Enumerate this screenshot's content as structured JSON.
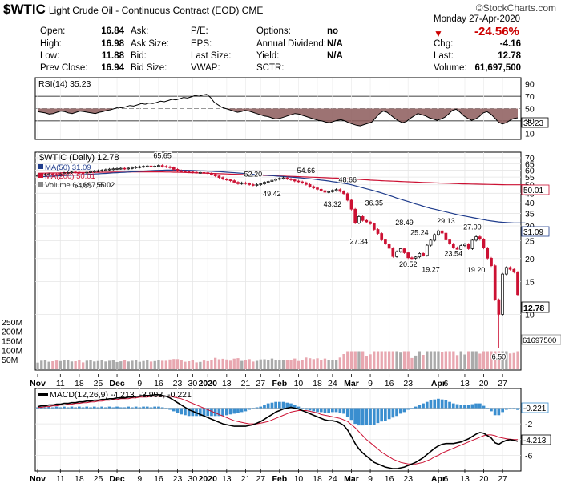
{
  "header": {
    "symbol": "$WTIC",
    "name": "Light Crude Oil - Continuous Contract (EOD) CME",
    "logo": "©StockCharts.com",
    "date": "Monday  27-Apr-2020",
    "change_pct": "-24.56%"
  },
  "quote": {
    "open_label": "Open:",
    "open": "16.84",
    "high_label": "High:",
    "high": "16.98",
    "low_label": "Low:",
    "low": "11.88",
    "prev_label": "Prev Close:",
    "prev": "16.94",
    "ask_label": "Ask:",
    "ask": "",
    "asksize_label": "Ask Size:",
    "asksize": "",
    "bid_label": "Bid:",
    "bid": "",
    "bidsize_label": "Bid Size:",
    "bidsize": "",
    "pe_label": "P/E:",
    "eps_label": "EPS:",
    "lastsize_label": "Last Size:",
    "vwap_label": "VWAP:",
    "options_label": "Options:",
    "options": "no",
    "div_label": "Annual Dividend:",
    "div": "N/A",
    "yield_label": "Yield:",
    "yield": "N/A",
    "sctr_label": "SCTR:",
    "chg_label": "Chg:",
    "chg": "-4.16",
    "last_label": "Last:",
    "last": "12.78",
    "volume_label": "Volume:",
    "volume": "61,697,500"
  },
  "colors": {
    "up": "#000000",
    "down": "#cc1133",
    "ma50": "#1f3c8c",
    "ma200": "#cc1133",
    "vol_up": "#aaaaaa",
    "vol_down": "#e8a7b0",
    "hist": "#3a8ecf",
    "rsi_fill": "#8c5a5a"
  },
  "chart_data": [
    {
      "type": "line",
      "panel": "rsi",
      "title": "RSI(14) 35.23",
      "current_label": "35.23",
      "ylim": [
        0,
        100
      ],
      "y_ticks": [
        "90",
        "70",
        "50",
        "30",
        "10"
      ],
      "levels": [
        70,
        30
      ],
      "values": [
        45,
        44,
        43,
        41,
        42,
        44,
        46,
        45,
        43,
        42,
        44,
        46,
        45,
        44,
        43,
        42,
        44,
        45,
        47,
        48,
        50,
        52,
        51,
        53,
        55,
        54,
        56,
        58,
        57,
        59,
        58,
        60,
        62,
        61,
        63,
        65,
        64,
        66,
        68,
        67,
        69,
        71,
        70,
        72,
        73,
        68,
        60,
        56,
        52,
        50,
        48,
        46,
        44,
        45,
        47,
        46,
        44,
        42,
        40,
        38,
        37,
        35,
        33,
        34,
        36,
        38,
        40,
        42,
        41,
        39,
        37,
        35,
        33,
        31,
        30,
        28,
        27,
        29,
        31,
        32,
        30,
        27,
        25,
        23,
        22,
        24,
        26,
        28,
        35,
        42,
        46,
        44,
        39,
        34,
        30,
        27,
        29,
        34,
        38,
        42,
        40,
        38,
        35,
        33,
        31,
        33,
        36,
        41,
        47,
        49,
        44,
        38,
        34,
        31,
        33,
        37,
        43,
        45,
        41,
        35,
        28,
        25,
        27,
        31,
        34,
        35
      ]
    },
    {
      "type": "candlestick",
      "panel": "price",
      "title": "$WTIC (Daily) 12.78",
      "legend": [
        "MA(50) 31.09",
        "MA(200) 50.01",
        "Volume 61,697,500"
      ],
      "current_label": "12.78",
      "ma50_label": "31.09",
      "ma200_label": "50.01",
      "y_scale": "log",
      "ylim": [
        5,
        75
      ],
      "y_ticks": [
        "70",
        "65",
        "60",
        "55",
        "50",
        "45",
        "40",
        "35",
        "30",
        "25",
        "20",
        "15",
        "10"
      ],
      "closes": [
        56.2,
        56.6,
        56.9,
        57.2,
        57.0,
        56.8,
        57.3,
        57.9,
        58.2,
        58.6,
        58.4,
        58.1,
        58.0,
        58.4,
        58.9,
        59.3,
        59.6,
        59.9,
        60.3,
        60.7,
        61.0,
        61.2,
        61.4,
        61.1,
        61.5,
        61.9,
        62.3,
        62.6,
        62.9,
        63.2,
        62.8,
        63.1,
        63.6,
        62.9,
        62.5,
        61.9,
        60.6,
        59.6,
        59.2,
        58.9,
        58.7,
        58.4,
        58.3,
        58.3,
        58.1,
        57.6,
        56.9,
        55.8,
        54.7,
        53.7,
        53.2,
        52.6,
        51.6,
        50.7,
        51.2,
        50.7,
        50.1,
        49.8,
        50.1,
        50.6,
        51.6,
        52.1,
        52.9,
        53.6,
        54.1,
        54.5,
        53.8,
        53.2,
        52.4,
        51.9,
        51.3,
        50.2,
        48.9,
        48.1,
        47.3,
        46.5,
        45.6,
        45.9,
        46.6,
        47.1,
        46.1,
        44.8,
        41.3,
        36.9,
        31.1,
        33.7,
        32.1,
        31.5,
        30.8,
        28.7,
        27.3,
        25.2,
        24.0,
        22.7,
        20.5,
        21.8,
        22.6,
        21.5,
        20.2,
        20.1,
        20.4,
        21.3,
        20.8,
        23.6,
        25.1,
        26.9,
        28.2,
        27.4,
        25.2,
        24.0,
        22.9,
        22.4,
        23.5,
        23.9,
        22.6,
        25.1,
        26.2,
        25.4,
        22.8,
        20.1,
        18.3,
        12.0,
        10.0,
        16.5,
        17.9,
        17.5,
        16.9,
        12.78
      ],
      "annotations": [
        {
          "label": "65.65",
          "i": 33,
          "value": 65.65,
          "pos": "above"
        },
        {
          "label": "54.85",
          "i": 12,
          "value": 54.85,
          "pos": "below"
        },
        {
          "label": "55.02",
          "i": 18,
          "value": 55.02,
          "pos": "below"
        },
        {
          "label": "52.20",
          "i": 57,
          "value": 52.2,
          "pos": "above"
        },
        {
          "label": "49.42",
          "i": 62,
          "value": 49.42,
          "pos": "below"
        },
        {
          "label": "54.66",
          "i": 71,
          "value": 54.66,
          "pos": "above"
        },
        {
          "label": "48.66",
          "i": 82,
          "value": 48.66,
          "pos": "above"
        },
        {
          "label": "43.32",
          "i": 78,
          "value": 43.32,
          "pos": "below"
        },
        {
          "label": "36.35",
          "i": 89,
          "value": 36.35,
          "pos": "above"
        },
        {
          "label": "27.34",
          "i": 85,
          "value": 27.34,
          "pos": "below"
        },
        {
          "label": "28.49",
          "i": 97,
          "value": 28.49,
          "pos": "above"
        },
        {
          "label": "25.24",
          "i": 101,
          "value": 25.24,
          "pos": "above"
        },
        {
          "label": "20.52",
          "i": 98,
          "value": 20.52,
          "pos": "below"
        },
        {
          "label": "29.13",
          "i": 108,
          "value": 29.13,
          "pos": "above"
        },
        {
          "label": "19.27",
          "i": 104,
          "value": 19.27,
          "pos": "below"
        },
        {
          "label": "23.54",
          "i": 110,
          "value": 23.54,
          "pos": "below"
        },
        {
          "label": "27.00",
          "i": 115,
          "value": 27.0,
          "pos": "above"
        },
        {
          "label": "19.20",
          "i": 116,
          "value": 19.2,
          "pos": "below"
        },
        {
          "label": "6.50",
          "i": 122,
          "value": 6.5,
          "pos": "below"
        }
      ],
      "ma200": [
        57.7,
        57.8,
        57.8,
        57.9,
        57.9,
        57.9,
        58.0,
        58.1,
        58.1,
        58.2,
        58.2,
        58.2,
        58.3,
        58.3,
        58.3,
        58.4,
        58.4,
        58.5,
        58.5,
        58.5,
        58.6,
        58.6,
        58.6,
        58.6,
        58.6,
        58.7,
        58.7,
        58.7,
        58.7,
        58.7,
        58.7,
        58.7,
        58.7,
        58.7,
        58.6,
        58.6,
        58.5,
        58.5,
        58.4,
        58.3,
        58.2,
        58.1,
        58.0,
        57.9,
        57.8,
        57.7,
        57.6,
        57.5,
        57.4,
        57.3,
        57.2,
        57.1,
        57.0,
        56.9,
        56.8,
        56.7,
        56.6,
        56.5,
        56.4,
        56.3,
        56.2,
        56.1,
        56.0,
        55.9,
        55.8,
        55.7,
        55.6,
        55.5,
        55.4,
        55.3,
        55.2,
        55.1,
        55.0,
        54.9,
        54.8,
        54.7,
        54.6,
        54.5,
        54.4,
        54.3,
        54.2,
        54.1,
        53.9,
        53.8,
        53.6,
        53.5,
        53.3,
        53.2,
        53.0,
        52.9,
        52.8,
        52.6,
        52.5,
        52.4,
        52.3,
        52.2,
        52.1,
        52.0,
        51.9,
        51.8,
        51.7,
        51.6,
        51.5,
        51.4,
        51.3,
        51.2,
        51.1,
        51.0,
        50.95,
        50.9,
        50.8,
        50.7,
        50.6,
        50.55,
        50.5,
        50.45,
        50.4,
        50.35,
        50.3,
        50.25,
        50.2,
        50.15,
        50.1,
        50.05,
        50.03,
        50.02,
        50.01,
        50.01,
        50.01,
        50.01
      ],
      "ma50": [
        55.2,
        55.3,
        55.4,
        55.6,
        55.7,
        55.8,
        55.9,
        56.1,
        56.2,
        56.3,
        56.4,
        56.6,
        56.7,
        56.8,
        57.0,
        57.2,
        57.3,
        57.5,
        57.6,
        57.8,
        58.0,
        58.1,
        58.3,
        58.4,
        58.6,
        58.8,
        58.9,
        59.1,
        59.3,
        59.4,
        59.6,
        59.7,
        59.8,
        59.9,
        60.0,
        60.0,
        60.0,
        60.0,
        59.9,
        59.9,
        59.8,
        59.7,
        59.6,
        59.5,
        59.4,
        59.3,
        59.2,
        59.0,
        58.9,
        58.7,
        58.5,
        58.3,
        58.1,
        57.9,
        57.7,
        57.5,
        57.3,
        57.0,
        56.8,
        56.6,
        56.4,
        56.2,
        56.0,
        55.8,
        55.6,
        55.4,
        55.2,
        55.0,
        54.8,
        54.6,
        54.4,
        54.1,
        53.9,
        53.6,
        53.3,
        53.0,
        52.7,
        52.4,
        52.0,
        51.7,
        51.3,
        50.9,
        50.5,
        50.0,
        49.4,
        48.8,
        48.2,
        47.6,
        47.0,
        46.4,
        45.8,
        45.2,
        44.5,
        43.8,
        43.1,
        42.4,
        41.8,
        41.2,
        40.6,
        40.0,
        39.4,
        38.9,
        38.3,
        37.8,
        37.3,
        36.9,
        36.5,
        36.1,
        35.7,
        35.3,
        34.9,
        34.5,
        34.2,
        33.9,
        33.6,
        33.3,
        33.0,
        32.7,
        32.4,
        32.1,
        31.9,
        31.7,
        31.5,
        31.4,
        31.3,
        31.2,
        31.1,
        31.09,
        31.09,
        31.09
      ]
    },
    {
      "type": "bar",
      "panel": "volume",
      "y_ticks": [
        "250M",
        "200M",
        "150M",
        "100M",
        "50M"
      ],
      "current_label": "61697500",
      "ylim": [
        0,
        300
      ]
    },
    {
      "type": "line",
      "panel": "macd",
      "title": "MACD(12,26,9) -4.213, -3.993, -0.221",
      "macd_label": "-4.213",
      "hist_label": "-0.221",
      "ylim": [
        -8,
        2.5
      ],
      "y_ticks": [
        "-2",
        "-4",
        "-6"
      ],
      "macd_line": [
        0.2,
        0.3,
        0.3,
        0.4,
        0.4,
        0.5,
        0.5,
        0.6,
        0.6,
        0.7,
        0.7,
        0.8,
        0.8,
        0.9,
        0.9,
        1.0,
        1.0,
        1.1,
        1.1,
        1.2,
        1.2,
        1.3,
        1.3,
        1.3,
        1.4,
        1.4,
        1.5,
        1.5,
        1.6,
        1.6,
        1.6,
        1.7,
        1.7,
        1.6,
        1.5,
        1.3,
        1.0,
        0.7,
        0.4,
        0.1,
        -0.2,
        -0.4,
        -0.6,
        -0.8,
        -1.0,
        -1.2,
        -1.4,
        -1.6,
        -1.8,
        -2.0,
        -2.1,
        -2.2,
        -2.3,
        -2.3,
        -2.3,
        -2.3,
        -2.2,
        -2.1,
        -1.9,
        -1.7,
        -1.4,
        -1.1,
        -0.8,
        -0.5,
        -0.3,
        -0.1,
        0.0,
        0.1,
        0.0,
        -0.1,
        -0.3,
        -0.5,
        -0.7,
        -0.9,
        -1.1,
        -1.3,
        -1.5,
        -1.6,
        -1.6,
        -1.7,
        -1.9,
        -2.2,
        -2.8,
        -3.6,
        -4.5,
        -5.2,
        -5.7,
        -6.1,
        -6.5,
        -6.9,
        -7.1,
        -7.3,
        -7.5,
        -7.6,
        -7.7,
        -7.7,
        -7.6,
        -7.5,
        -7.3,
        -7.1,
        -6.9,
        -6.6,
        -6.3,
        -5.9,
        -5.5,
        -5.1,
        -4.8,
        -4.6,
        -4.5,
        -4.5,
        -4.5,
        -4.4,
        -4.3,
        -4.1,
        -3.9,
        -3.6,
        -3.3,
        -3.1,
        -3.2,
        -3.5,
        -3.8,
        -4.4,
        -4.6,
        -4.3,
        -4.1,
        -4.0,
        -4.1,
        -4.213
      ],
      "signal_line": [
        0.1,
        0.1,
        0.2,
        0.2,
        0.3,
        0.3,
        0.4,
        0.4,
        0.5,
        0.5,
        0.6,
        0.6,
        0.7,
        0.7,
        0.8,
        0.8,
        0.9,
        0.9,
        1.0,
        1.0,
        1.1,
        1.1,
        1.2,
        1.2,
        1.2,
        1.3,
        1.3,
        1.4,
        1.4,
        1.4,
        1.5,
        1.5,
        1.5,
        1.5,
        1.5,
        1.5,
        1.4,
        1.3,
        1.2,
        1.0,
        0.8,
        0.6,
        0.4,
        0.2,
        0.0,
        -0.2,
        -0.4,
        -0.6,
        -0.8,
        -1.0,
        -1.2,
        -1.4,
        -1.6,
        -1.7,
        -1.8,
        -1.9,
        -2.0,
        -2.0,
        -2.0,
        -1.9,
        -1.8,
        -1.7,
        -1.5,
        -1.3,
        -1.1,
        -0.9,
        -0.7,
        -0.5,
        -0.4,
        -0.3,
        -0.3,
        -0.3,
        -0.4,
        -0.5,
        -0.6,
        -0.8,
        -0.9,
        -1.0,
        -1.1,
        -1.2,
        -1.3,
        -1.5,
        -1.7,
        -2.1,
        -2.5,
        -3.0,
        -3.5,
        -4.0,
        -4.4,
        -4.8,
        -5.2,
        -5.6,
        -5.9,
        -6.2,
        -6.5,
        -6.7,
        -6.9,
        -7.0,
        -7.1,
        -7.1,
        -7.1,
        -7.0,
        -6.9,
        -6.7,
        -6.5,
        -6.2,
        -6.0,
        -5.7,
        -5.5,
        -5.3,
        -5.1,
        -4.9,
        -4.7,
        -4.5,
        -4.3,
        -4.1,
        -3.9,
        -3.7,
        -3.5,
        -3.4,
        -3.4,
        -3.5,
        -3.7,
        -3.8,
        -3.9,
        -3.95,
        -3.99,
        -3.993
      ]
    }
  ],
  "x_axis": {
    "labels": [
      {
        "text": "Nov",
        "i": 0,
        "bold": true
      },
      {
        "text": "11",
        "i": 6
      },
      {
        "text": "18",
        "i": 11
      },
      {
        "text": "25",
        "i": 16
      },
      {
        "text": "Dec",
        "i": 21,
        "bold": true
      },
      {
        "text": "9",
        "i": 27
      },
      {
        "text": "16",
        "i": 32
      },
      {
        "text": "23",
        "i": 37
      },
      {
        "text": "30",
        "i": 41
      },
      {
        "text": "2020",
        "i": 45,
        "bold": true
      },
      {
        "text": "13",
        "i": 50
      },
      {
        "text": "21",
        "i": 55
      },
      {
        "text": "27",
        "i": 59
      },
      {
        "text": "Feb",
        "i": 64,
        "bold": true
      },
      {
        "text": "10",
        "i": 69
      },
      {
        "text": "18",
        "i": 74
      },
      {
        "text": "24",
        "i": 78
      },
      {
        "text": "Mar",
        "i": 83,
        "bold": true
      },
      {
        "text": "9",
        "i": 88
      },
      {
        "text": "16",
        "i": 93
      },
      {
        "text": "23",
        "i": 98
      },
      {
        "text": "Apr",
        "i": 106,
        "bold": true
      },
      {
        "text": "6",
        "i": 108
      },
      {
        "text": "13",
        "i": 113
      },
      {
        "text": "20",
        "i": 118
      },
      {
        "text": "27",
        "i": 123
      }
    ]
  }
}
